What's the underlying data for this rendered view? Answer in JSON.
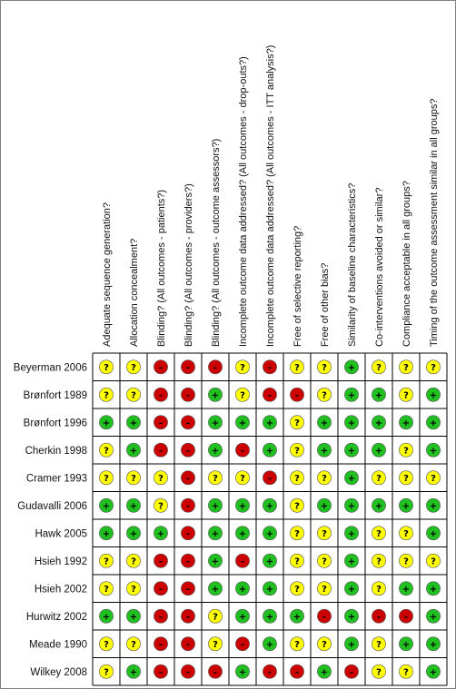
{
  "chart_data": {
    "type": "table",
    "columns": [
      "Adequate sequence generation?",
      "Allocation concealment?",
      "Blinding? (All outcomes - patients?)",
      "Blinding? (All outcomes - providers?)",
      "Blinding? (All outcomes - outcome assessors?)",
      "Incomplete outcome data addressed? (All outcomes - drop-outs?)",
      "Incomplete outcome data addressed? (All outcomes - ITT analysis?)",
      "Free of selective reporting?",
      "Free of other bias?",
      "Similarity of baseline characteristics?",
      "Co-interventions avoided or similar?",
      "Compliance acceptable in all groups?",
      "Timing of the outcome assessment similar in all groups?"
    ],
    "rows": [
      {
        "study": "Beyerman 2006",
        "ratings": [
          "?",
          "?",
          "-",
          "-",
          "-",
          "?",
          "-",
          "?",
          "?",
          "+",
          "?",
          "?",
          "?"
        ]
      },
      {
        "study": "Brønfort 1989",
        "ratings": [
          "?",
          "?",
          "-",
          "-",
          "+",
          "?",
          "-",
          "-",
          "?",
          "+",
          "+",
          "?",
          "+"
        ]
      },
      {
        "study": "Brønfort 1996",
        "ratings": [
          "+",
          "+",
          "-",
          "-",
          "+",
          "+",
          "+",
          "?",
          "+",
          "+",
          "+",
          "+",
          "+"
        ]
      },
      {
        "study": "Cherkin 1998",
        "ratings": [
          "?",
          "+",
          "-",
          "-",
          "+",
          "-",
          "+",
          "?",
          "+",
          "+",
          "+",
          "?",
          "+"
        ]
      },
      {
        "study": "Cramer 1993",
        "ratings": [
          "?",
          "?",
          "?",
          "-",
          "?",
          "?",
          "-",
          "?",
          "?",
          "+",
          "?",
          "?",
          "?"
        ]
      },
      {
        "study": "Gudavalli 2006",
        "ratings": [
          "+",
          "+",
          "?",
          "-",
          "+",
          "+",
          "+",
          "?",
          "+",
          "+",
          "+",
          "+",
          "+"
        ]
      },
      {
        "study": "Hawk 2005",
        "ratings": [
          "+",
          "+",
          "+",
          "-",
          "+",
          "+",
          "+",
          "?",
          "?",
          "+",
          "?",
          "?",
          "+"
        ]
      },
      {
        "study": "Hsieh 1992",
        "ratings": [
          "?",
          "?",
          "-",
          "-",
          "+",
          "-",
          "+",
          "?",
          "?",
          "+",
          "?",
          "?",
          "?"
        ]
      },
      {
        "study": "Hsieh 2002",
        "ratings": [
          "?",
          "?",
          "-",
          "-",
          "+",
          "+",
          "+",
          "?",
          "?",
          "+",
          "?",
          "+",
          "+"
        ]
      },
      {
        "study": "Hurwitz 2002",
        "ratings": [
          "+",
          "+",
          "-",
          "-",
          "?",
          "+",
          "+",
          "+",
          "-",
          "+",
          "-",
          "-",
          "+"
        ]
      },
      {
        "study": "Meade 1990",
        "ratings": [
          "?",
          "?",
          "-",
          "-",
          "?",
          "-",
          "+",
          "?",
          "?",
          "+",
          "?",
          "+",
          "+"
        ]
      },
      {
        "study": "Wilkey 2008",
        "ratings": [
          "?",
          "+",
          "-",
          "-",
          "-",
          "+",
          "-",
          "-",
          "+",
          "-",
          "?",
          "?",
          "+"
        ]
      }
    ],
    "legend": {
      "+": "#20c020",
      "?": "#ffff00",
      "-": "#cc0000"
    }
  }
}
